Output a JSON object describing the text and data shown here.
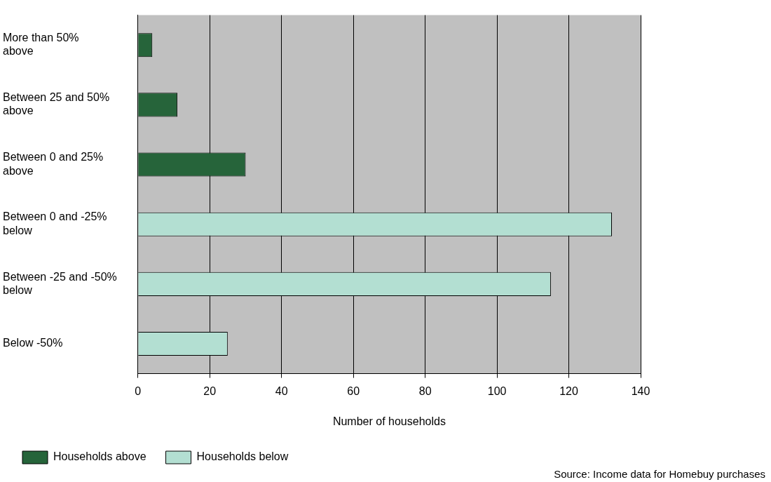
{
  "chart_data": {
    "type": "bar",
    "orientation": "horizontal",
    "categories": [
      "More than 50% above",
      "Between 25 and 50% above",
      "Between 0 and 25% above",
      "Between 0 and -25% below",
      "Between -25 and -50% below",
      "Below -50%"
    ],
    "series": [
      {
        "name": "Households above",
        "color": "#26643a",
        "values": [
          4,
          11,
          30,
          null,
          null,
          null
        ]
      },
      {
        "name": "Households below",
        "color": "#b3dfd2",
        "values": [
          null,
          null,
          null,
          132,
          115,
          25
        ]
      }
    ],
    "xlabel": "Number of households",
    "xlim": [
      0,
      140
    ],
    "xticks": [
      0,
      20,
      40,
      60,
      80,
      100,
      120,
      140
    ],
    "grid": "x",
    "legend": "bottom",
    "annotations": [
      "Source: Income data for Homebuy purchases"
    ]
  }
}
